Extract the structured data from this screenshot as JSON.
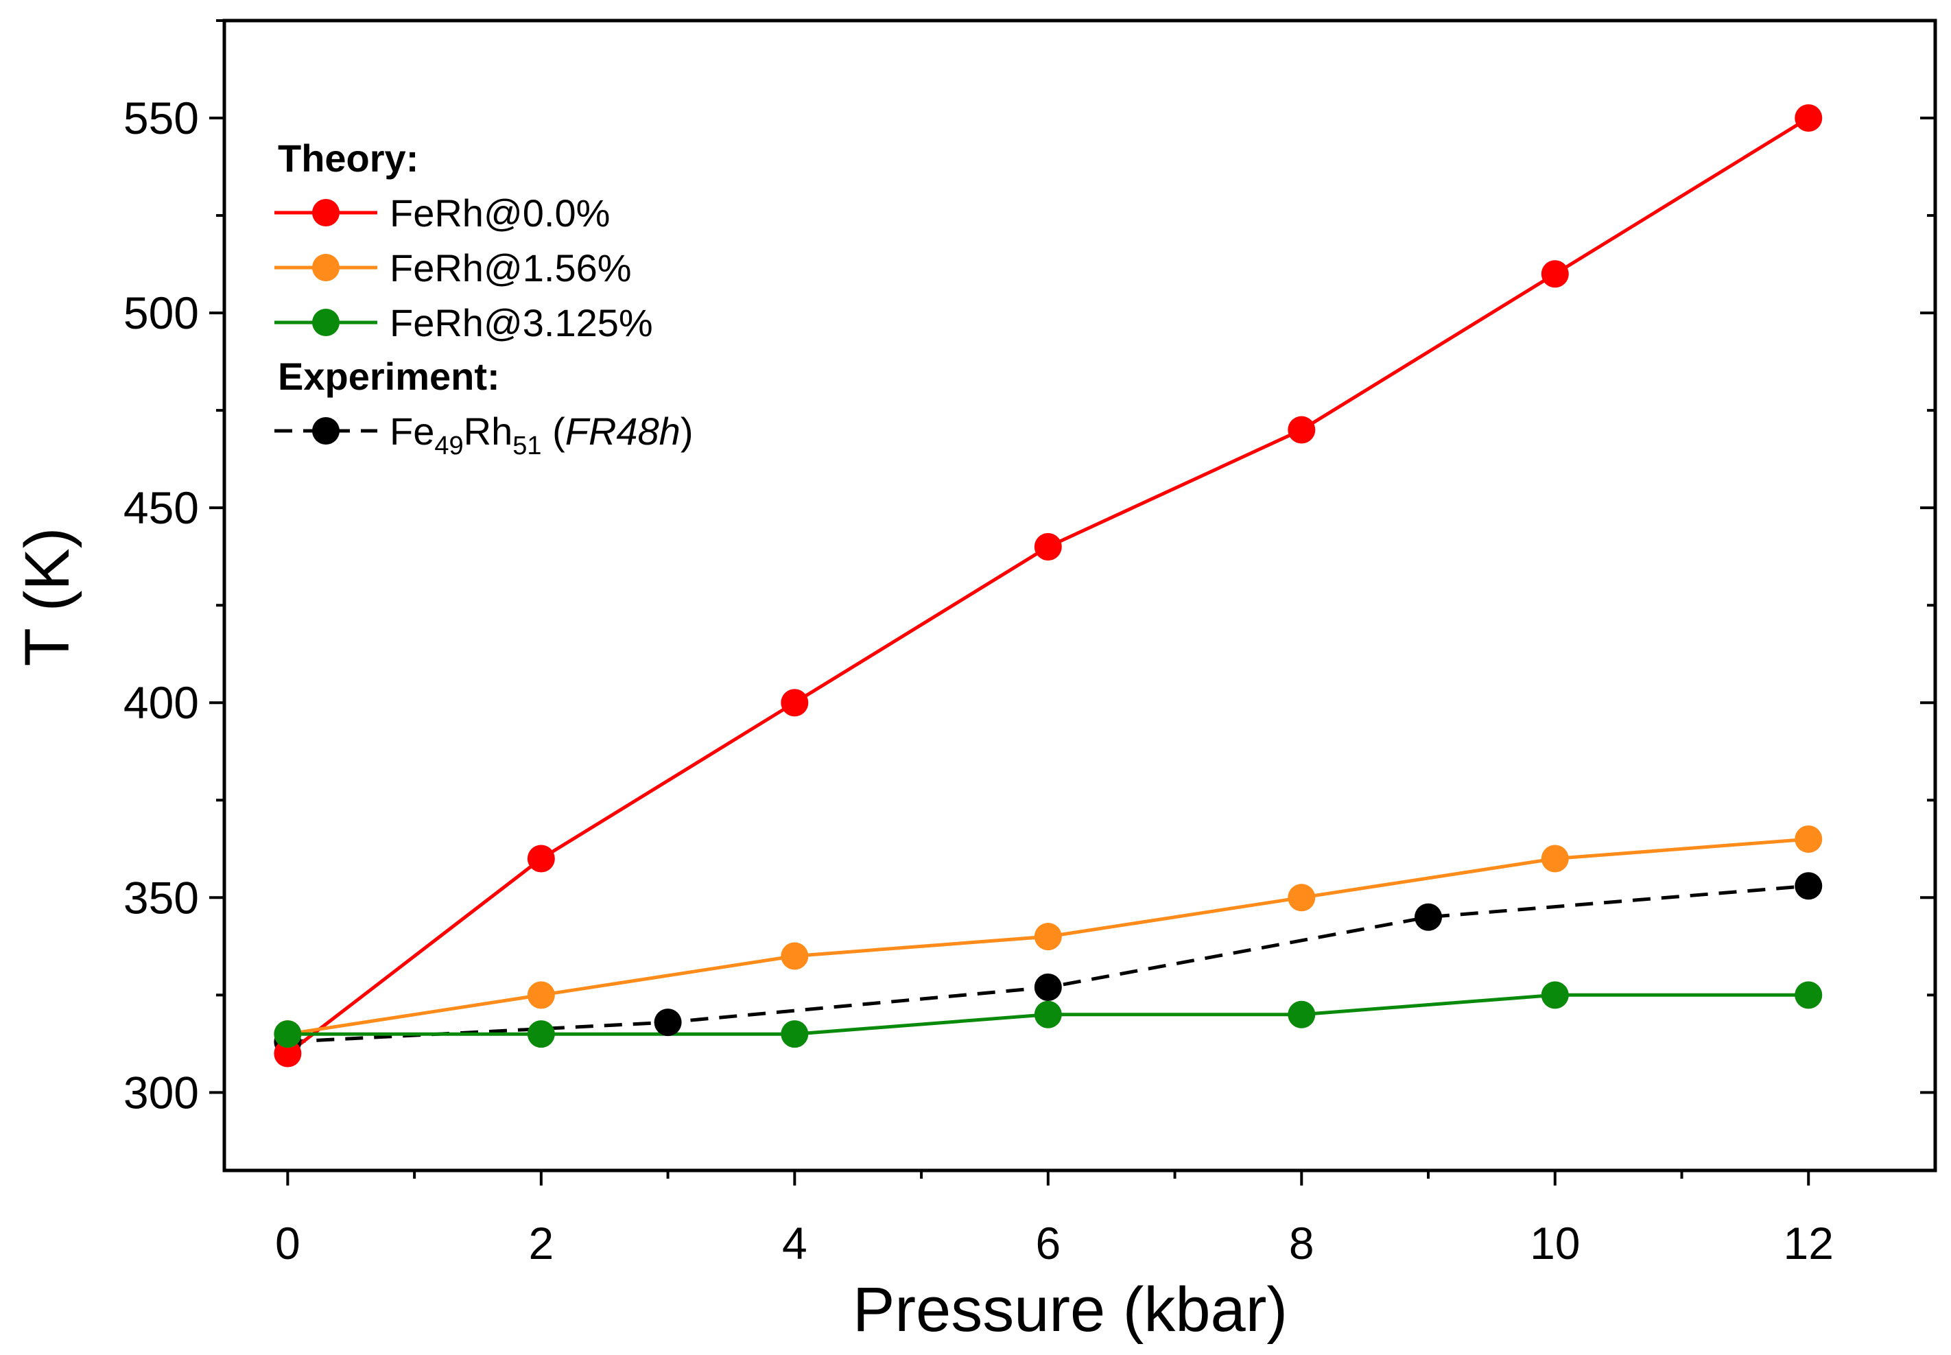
{
  "chart_data": {
    "type": "line",
    "xlabel": "Pressure (kbar)",
    "ylabel": "T (K)",
    "xlim": [
      -0.5,
      13
    ],
    "ylim": [
      280,
      575
    ],
    "x_ticks": [
      "0",
      "2",
      "4",
      "6",
      "8",
      "10",
      "12"
    ],
    "y_ticks": [
      "300",
      "350",
      "400",
      "450",
      "500",
      "550"
    ],
    "legend": {
      "position": "top-left",
      "theory_heading": "Theory:",
      "experiment_heading": "Experiment:"
    },
    "series": [
      {
        "name": "FeRh@0.0%",
        "group": "Theory",
        "color": "#ff0000",
        "line_style": "solid",
        "x": [
          0,
          2,
          4,
          6,
          8,
          10,
          12
        ],
        "values": [
          310,
          360,
          400,
          440,
          470,
          510,
          550
        ]
      },
      {
        "name": "FeRh@1.56%",
        "group": "Theory",
        "color": "#ff8c1a",
        "line_style": "solid",
        "x": [
          0,
          2,
          4,
          6,
          8,
          10,
          12
        ],
        "values": [
          315,
          325,
          335,
          340,
          350,
          360,
          365
        ]
      },
      {
        "name": "FeRh@3.125%",
        "group": "Theory",
        "color": "#0a8a0a",
        "line_style": "solid",
        "x": [
          0,
          2,
          4,
          6,
          8,
          10,
          12
        ],
        "values": [
          315,
          315,
          315,
          320,
          320,
          325,
          325
        ]
      },
      {
        "name": "Fe49Rh51 (FR48h)",
        "group": "Experiment",
        "color": "#000000",
        "line_style": "dashed",
        "x": [
          0,
          3,
          6,
          9,
          12
        ],
        "values": [
          313,
          318,
          327,
          345,
          353
        ],
        "label_parts": {
          "base1": "Fe",
          "sub1": "49",
          "base2": "Rh",
          "sub2": "51",
          "open": " (",
          "italic": "FR48h",
          "close": ")"
        }
      }
    ]
  }
}
